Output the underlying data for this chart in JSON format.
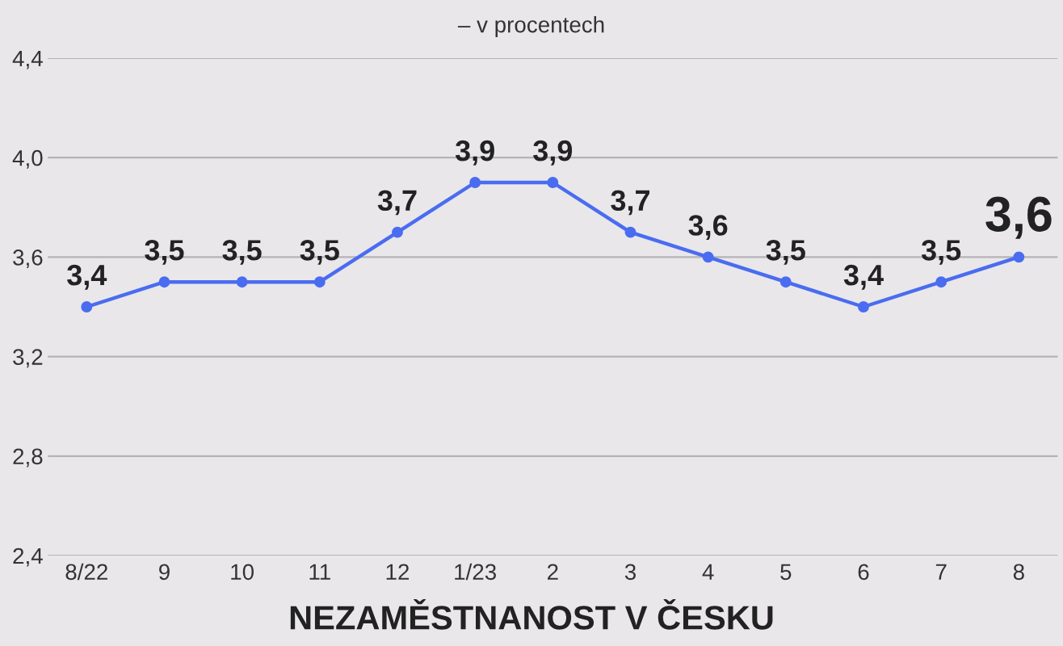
{
  "chart_data": {
    "type": "line",
    "title": "NEZAMĚSTNANOST V ČESKU",
    "subtitle": "– v procentech",
    "categories": [
      "8/22",
      "9",
      "10",
      "11",
      "12",
      "1/23",
      "2",
      "3",
      "4",
      "5",
      "6",
      "7",
      "8"
    ],
    "series": [
      {
        "color": "#4a6cf0",
        "values": [
          3.4,
          3.5,
          3.5,
          3.5,
          3.7,
          3.9,
          3.9,
          3.7,
          3.6,
          3.5,
          3.4,
          3.5,
          3.6
        ],
        "value_labels": [
          "3,4",
          "3,5",
          "3,5",
          "3,5",
          "3,7",
          "3,9",
          "3,9",
          "3,7",
          "3,6",
          "3,5",
          "3,4",
          "3,5",
          "3,6"
        ]
      }
    ],
    "ylim": [
      2.4,
      4.4
    ],
    "yticks": [
      {
        "value": 2.4,
        "label": "2,4"
      },
      {
        "value": 2.8,
        "label": "2,8"
      },
      {
        "value": 3.2,
        "label": "3,2"
      },
      {
        "value": 3.6,
        "label": "3,6"
      },
      {
        "value": 4.0,
        "label": "4,0"
      },
      {
        "value": 4.4,
        "label": "4,4"
      }
    ],
    "grid": "y",
    "marker": "circle",
    "line_style": "solid",
    "legend": false
  }
}
